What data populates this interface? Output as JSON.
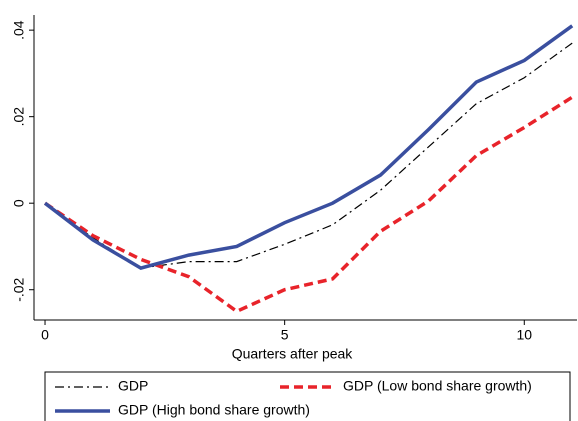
{
  "chart_data": {
    "type": "line",
    "x_label": "Quarters after peak",
    "x": [
      0,
      1,
      2,
      3,
      4,
      5,
      6,
      7,
      8,
      9,
      10,
      11
    ],
    "series": [
      {
        "name": "GDP",
        "color": "#000000",
        "dash": "dashdot",
        "values": [
          0,
          -0.008,
          -0.015,
          -0.0135,
          -0.0135,
          -0.0095,
          -0.005,
          0.003,
          0.013,
          0.023,
          0.029,
          0.037
        ]
      },
      {
        "name": "GDP (Low bond share growth)",
        "color": "#e8232a",
        "dash": "dash",
        "values": [
          0,
          -0.0075,
          -0.013,
          -0.017,
          -0.025,
          -0.02,
          -0.0175,
          -0.0065,
          0.0005,
          0.011,
          0.0175,
          0.0245
        ]
      },
      {
        "name": "GDP (High bond share growth)",
        "color": "#3a4f9f",
        "dash": "solid",
        "values": [
          0,
          -0.0085,
          -0.015,
          -0.012,
          -0.01,
          -0.0045,
          0,
          0.0065,
          0.017,
          0.028,
          0.033,
          0.041
        ]
      }
    ],
    "xlim": [
      -0.23,
      11.1
    ],
    "xticks": [
      0,
      5,
      10
    ],
    "ylim": [
      -0.027,
      0.0435
    ],
    "yticks": [
      {
        "value": -0.02,
        "label": "-.02"
      },
      0,
      {
        "value": 0.02,
        "label": ".02"
      },
      {
        "value": 0.04,
        "label": ".04"
      }
    ],
    "grid": false,
    "legend": "bottom"
  }
}
